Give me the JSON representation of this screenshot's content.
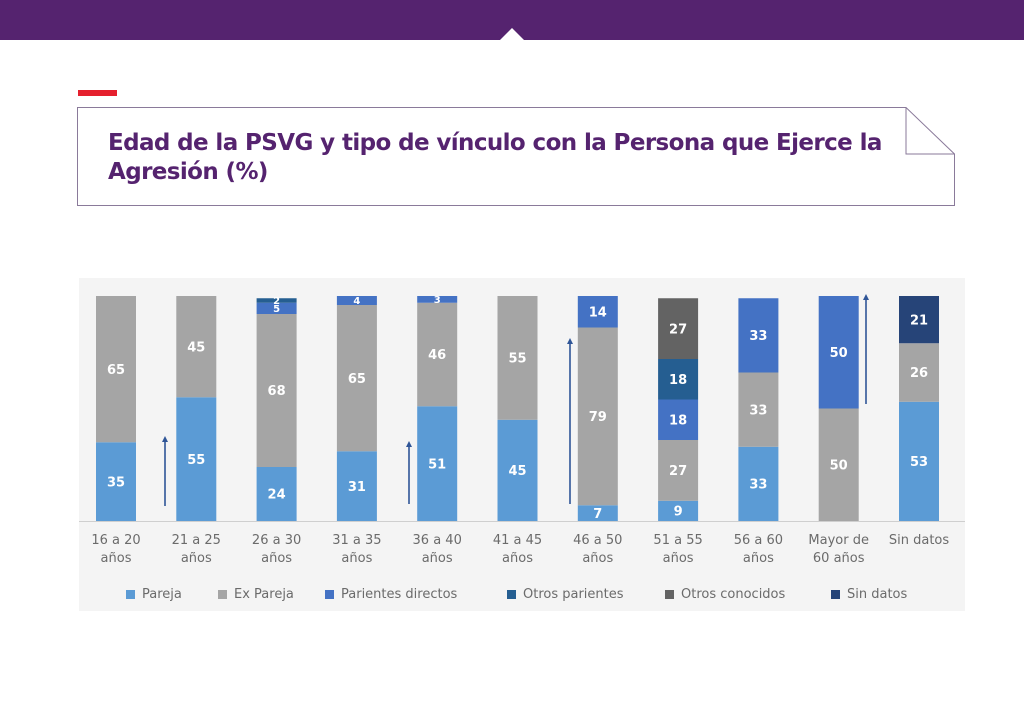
{
  "page": {
    "title": "Edad de la PSVG y tipo de vínculo con la Persona que Ejerce la Agresión (%)"
  },
  "chart_data": {
    "type": "bar",
    "stacked": true,
    "categories": [
      [
        "16 a 20",
        "años"
      ],
      [
        "21 a 25",
        "años"
      ],
      [
        "26 a 30",
        "años"
      ],
      [
        "31 a 35",
        "años"
      ],
      [
        "36 a 40",
        "años"
      ],
      [
        "41 a 45",
        "años"
      ],
      [
        "46 a 50",
        "años"
      ],
      [
        "51 a 55",
        "años"
      ],
      [
        "56 a 60",
        "años"
      ],
      [
        "Mayor de",
        "60 años"
      ],
      [
        "Sin datos"
      ]
    ],
    "series": [
      {
        "name": "Pareja",
        "color": "#5b9bd5",
        "values": [
          35,
          55,
          24,
          31,
          51,
          45,
          7,
          9,
          33,
          0,
          53
        ]
      },
      {
        "name": "Ex Pareja",
        "color": "#a5a5a5",
        "values": [
          65,
          45,
          68,
          65,
          46,
          55,
          79,
          27,
          33,
          50,
          26
        ]
      },
      {
        "name": "Parientes directos",
        "color": "#4472c4",
        "values": [
          0,
          0,
          5,
          4,
          3,
          0,
          14,
          18,
          33,
          50,
          0
        ]
      },
      {
        "name": "Otros parientes",
        "color": "#255e91",
        "values": [
          0,
          0,
          2,
          0,
          0,
          0,
          0,
          18,
          0,
          0,
          0
        ]
      },
      {
        "name": "Otros conocidos",
        "color": "#636363",
        "values": [
          0,
          0,
          0,
          0,
          0,
          0,
          0,
          27,
          0,
          0,
          0
        ]
      },
      {
        "name": "Sin datos",
        "color": "#264478",
        "values": [
          0,
          0,
          0,
          0,
          0,
          0,
          0,
          0,
          0,
          0,
          21
        ]
      }
    ],
    "ylim": [
      0,
      100
    ],
    "grid": false,
    "legend_position": "bottom",
    "label_color": "#ffffff"
  }
}
